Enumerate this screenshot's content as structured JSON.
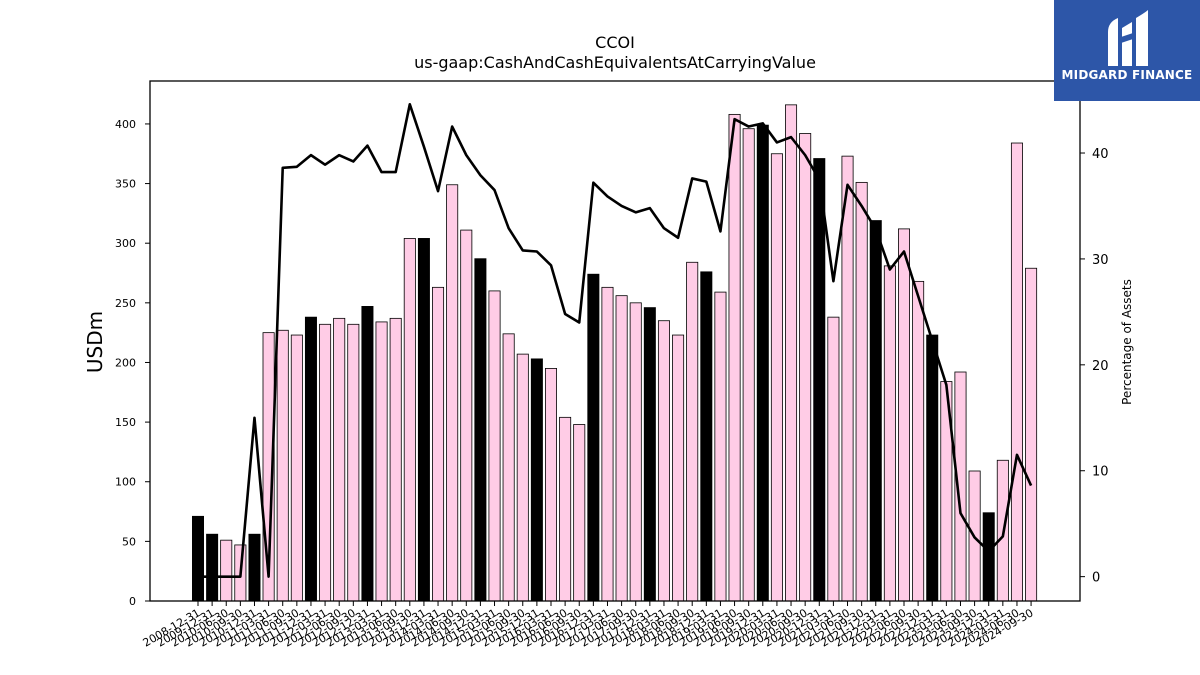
{
  "chart_data": {
    "type": "bar",
    "title": "CCOI",
    "subtitle": "us-gaap:CashAndCashEquivalentsAtCarryingValue",
    "ylabel": "USDm",
    "y2label": "Percentage of Assets",
    "ylim": [
      0,
      436
    ],
    "y2lim": [
      -2.3,
      46.8
    ],
    "yticks": [
      0,
      50,
      100,
      150,
      200,
      250,
      300,
      350,
      400
    ],
    "y2ticks": [
      0,
      10,
      20,
      30,
      40
    ],
    "categories": [
      "2008-12-31",
      "2009-12-31",
      "2010-06-30",
      "2010-09-30",
      "2010-12-31",
      "2011-03-31",
      "2011-06-30",
      "2011-09-30",
      "2011-12-31",
      "2012-03-31",
      "2012-06-30",
      "2012-09-30",
      "2012-12-31",
      "2013-03-31",
      "2013-06-30",
      "2013-09-30",
      "2013-12-31",
      "2014-03-31",
      "2014-06-30",
      "2014-09-30",
      "2014-12-31",
      "2015-03-31",
      "2015-06-30",
      "2015-09-30",
      "2015-12-31",
      "2016-03-31",
      "2016-06-30",
      "2016-09-30",
      "2016-12-31",
      "2017-03-31",
      "2017-06-30",
      "2017-09-30",
      "2017-12-31",
      "2018-03-31",
      "2018-06-30",
      "2018-09-30",
      "2018-12-31",
      "2019-03-31",
      "2019-06-30",
      "2019-09-30",
      "2019-12-31",
      "2020-03-31",
      "2020-06-30",
      "2020-09-30",
      "2020-12-31",
      "2021-03-31",
      "2021-06-30",
      "2021-09-30",
      "2021-12-31",
      "2022-03-31",
      "2022-06-30",
      "2022-09-30",
      "2022-12-31",
      "2023-03-31",
      "2023-06-30",
      "2023-09-30",
      "2023-12-31",
      "2024-03-31",
      "2024-06-30",
      "2024-09-30"
    ],
    "visible_tick_labels": [
      "2008-12-31",
      "2009-12-31",
      "2010-06-30",
      "2010-09-30",
      "2010-12-31",
      "2011-03-31",
      "2011-06-30",
      "2011-09-30",
      "2011-12-31",
      "2012-03-31",
      "2012-06-30",
      "2012-09-30",
      "2012-12-31",
      "2013-03-31",
      "2013-06-30",
      "2013-09-30",
      "2013-12-31",
      "2014-03-31",
      "2014-06-30",
      "2014-09-30",
      "2014-12-31",
      "2015-03-31",
      "2015-06-30",
      "2015-09-30",
      "2015-12-31",
      "2016-03-31",
      "2016-06-30",
      "2016-09-30",
      "2016-12-31",
      "2017-03-31",
      "2017-06-30",
      "2017-09-30",
      "2017-12-31",
      "2018-03-31",
      "2018-06-30",
      "2018-09-30",
      "2018-12-31",
      "2019-03-31",
      "2019-06-30",
      "2019-09-30",
      "2019-12-31",
      "2020-03-31",
      "2020-06-30",
      "2020-09-30",
      "2020-12-31",
      "2021-03-31",
      "2021-06-30",
      "2021-09-30",
      "2021-12-31",
      "2022-03-31",
      "2022-06-30",
      "2022-09-30",
      "2022-12-31",
      "2023-03-31",
      "2023-06-30",
      "2023-09-30",
      "2023-12-31",
      "2024-03-31",
      "2024-06-30",
      "2024-09-30"
    ],
    "bar_values": [
      71,
      56,
      51,
      47,
      56,
      225,
      227,
      223,
      238,
      232,
      237,
      232,
      247,
      234,
      237,
      304,
      304,
      263,
      349,
      311,
      287,
      260,
      224,
      207,
      203,
      195,
      154,
      148,
      274,
      263,
      256,
      250,
      246,
      235,
      223,
      284,
      276,
      259,
      408,
      396,
      399,
      375,
      416,
      392,
      371,
      238,
      373,
      351,
      319,
      281,
      312,
      268,
      223,
      184,
      192,
      109,
      74,
      118,
      384,
      279
    ],
    "bar_highlight": [
      1,
      1,
      0,
      0,
      1,
      0,
      0,
      0,
      1,
      0,
      0,
      0,
      1,
      0,
      0,
      0,
      1,
      0,
      0,
      0,
      1,
      0,
      0,
      0,
      1,
      0,
      0,
      0,
      1,
      0,
      0,
      0,
      1,
      0,
      0,
      0,
      1,
      0,
      0,
      0,
      1,
      0,
      0,
      0,
      1,
      0,
      0,
      0,
      1,
      0,
      0,
      0,
      1,
      0,
      0,
      0,
      1,
      0,
      0,
      0
    ],
    "line_values": [
      0,
      0,
      0,
      0,
      15,
      0,
      38.6,
      38.7,
      39.8,
      38.9,
      39.8,
      39.2,
      40.7,
      38.2,
      38.2,
      44.6,
      40.6,
      36.4,
      42.5,
      39.8,
      37.9,
      36.5,
      32.9,
      30.8,
      30.7,
      29.4,
      24.8,
      24.0,
      37.2,
      35.9,
      35.0,
      34.4,
      34.8,
      32.9,
      32.0,
      37.6,
      37.3,
      32.6,
      43.2,
      42.5,
      42.8,
      41.0,
      41.5,
      39.8,
      37.5,
      27.9,
      37.0,
      35.0,
      32.8,
      29.0,
      30.7,
      26.5,
      22.3,
      18.1,
      6.0,
      3.7,
      2.4,
      3.8,
      11.5,
      8.6
    ],
    "colors": {
      "bar": "#ffcce6",
      "bar_highlight": "#000000",
      "line": "#000000",
      "axis": "#000000"
    },
    "grid": false,
    "legend": "none"
  },
  "brand": {
    "name": "MIDGARD FINANCE",
    "background": "#2d56a8",
    "text_color": "#ffffff"
  }
}
